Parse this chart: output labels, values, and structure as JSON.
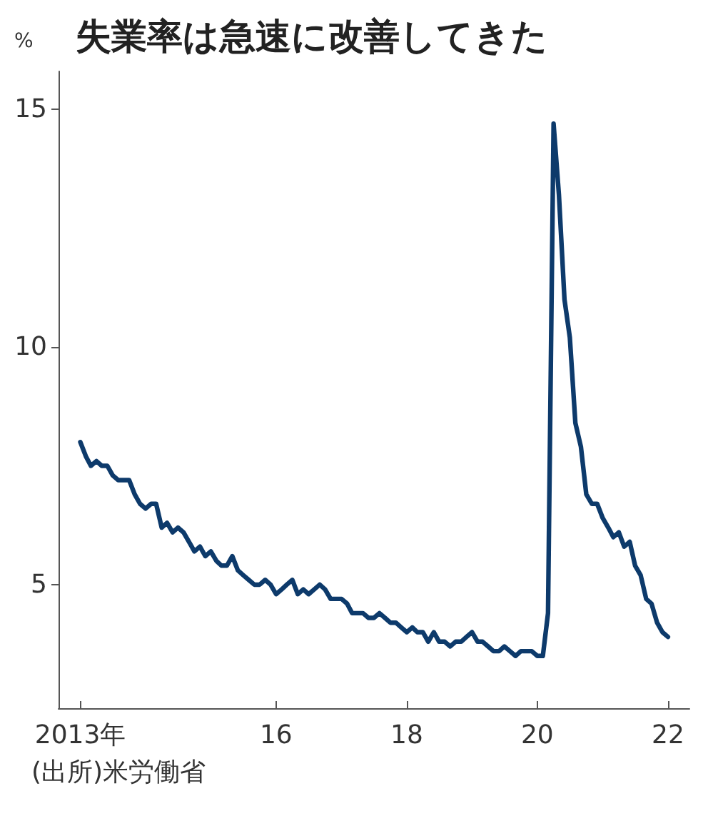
{
  "chart_data": {
    "type": "line",
    "title": "失業率は急速に改善してきた",
    "ylabel": "%",
    "annotations": [
      "(出所)米労働省"
    ],
    "x": [
      "2013-01",
      "2013-02",
      "2013-03",
      "2013-04",
      "2013-05",
      "2013-06",
      "2013-07",
      "2013-08",
      "2013-09",
      "2013-10",
      "2013-11",
      "2013-12",
      "2014-01",
      "2014-02",
      "2014-03",
      "2014-04",
      "2014-05",
      "2014-06",
      "2014-07",
      "2014-08",
      "2014-09",
      "2014-10",
      "2014-11",
      "2014-12",
      "2015-01",
      "2015-02",
      "2015-03",
      "2015-04",
      "2015-05",
      "2015-06",
      "2015-07",
      "2015-08",
      "2015-09",
      "2015-10",
      "2015-11",
      "2015-12",
      "2016-01",
      "2016-02",
      "2016-03",
      "2016-04",
      "2016-05",
      "2016-06",
      "2016-07",
      "2016-08",
      "2016-09",
      "2016-10",
      "2016-11",
      "2016-12",
      "2017-01",
      "2017-02",
      "2017-03",
      "2017-04",
      "2017-05",
      "2017-06",
      "2017-07",
      "2017-08",
      "2017-09",
      "2017-10",
      "2017-11",
      "2017-12",
      "2018-01",
      "2018-02",
      "2018-03",
      "2018-04",
      "2018-05",
      "2018-06",
      "2018-07",
      "2018-08",
      "2018-09",
      "2018-10",
      "2018-11",
      "2018-12",
      "2019-01",
      "2019-02",
      "2019-03",
      "2019-04",
      "2019-05",
      "2019-06",
      "2019-07",
      "2019-08",
      "2019-09",
      "2019-10",
      "2019-11",
      "2019-12",
      "2020-01",
      "2020-02",
      "2020-03",
      "2020-04",
      "2020-05",
      "2020-06",
      "2020-07",
      "2020-08",
      "2020-09",
      "2020-10",
      "2020-11",
      "2020-12",
      "2021-01",
      "2021-02",
      "2021-03",
      "2021-04",
      "2021-05",
      "2021-06",
      "2021-07",
      "2021-08",
      "2021-09",
      "2021-10",
      "2021-11",
      "2021-12",
      "2022-01"
    ],
    "series": [
      {
        "color": "#0d3a6b",
        "values": [
          8.0,
          7.7,
          7.5,
          7.6,
          7.5,
          7.5,
          7.3,
          7.2,
          7.2,
          7.2,
          6.9,
          6.7,
          6.6,
          6.7,
          6.7,
          6.2,
          6.3,
          6.1,
          6.2,
          6.1,
          5.9,
          5.7,
          5.8,
          5.6,
          5.7,
          5.5,
          5.4,
          5.4,
          5.6,
          5.3,
          5.2,
          5.1,
          5.0,
          5.0,
          5.1,
          5.0,
          4.8,
          4.9,
          5.0,
          5.1,
          4.8,
          4.9,
          4.8,
          4.9,
          5.0,
          4.9,
          4.7,
          4.7,
          4.7,
          4.6,
          4.4,
          4.4,
          4.4,
          4.3,
          4.3,
          4.4,
          4.3,
          4.2,
          4.2,
          4.1,
          4.0,
          4.1,
          4.0,
          4.0,
          3.8,
          4.0,
          3.8,
          3.8,
          3.7,
          3.8,
          3.8,
          3.9,
          4.0,
          3.8,
          3.8,
          3.7,
          3.6,
          3.6,
          3.7,
          3.6,
          3.5,
          3.6,
          3.6,
          3.6,
          3.5,
          3.5,
          4.4,
          14.7,
          13.2,
          11.0,
          10.2,
          8.4,
          7.9,
          6.9,
          6.7,
          6.7,
          6.4,
          6.2,
          6.0,
          6.1,
          5.8,
          5.9,
          5.4,
          5.2,
          4.7,
          4.6,
          4.2,
          4.0,
          3.9
        ]
      }
    ],
    "xlim": [
      "2012-09",
      "2022-05"
    ],
    "xticks": [
      {
        "value": "2013-01",
        "label": "2013年"
      },
      {
        "value": "2016-01",
        "label": "16"
      },
      {
        "value": "2018-01",
        "label": "18"
      },
      {
        "value": "2020-01",
        "label": "20"
      },
      {
        "value": "2022-01",
        "label": "22"
      }
    ],
    "ylim": [
      2.4,
      15.8
    ],
    "yticks": [
      5,
      10,
      15
    ],
    "grid": false,
    "marker": "none",
    "line_style": "solid"
  }
}
